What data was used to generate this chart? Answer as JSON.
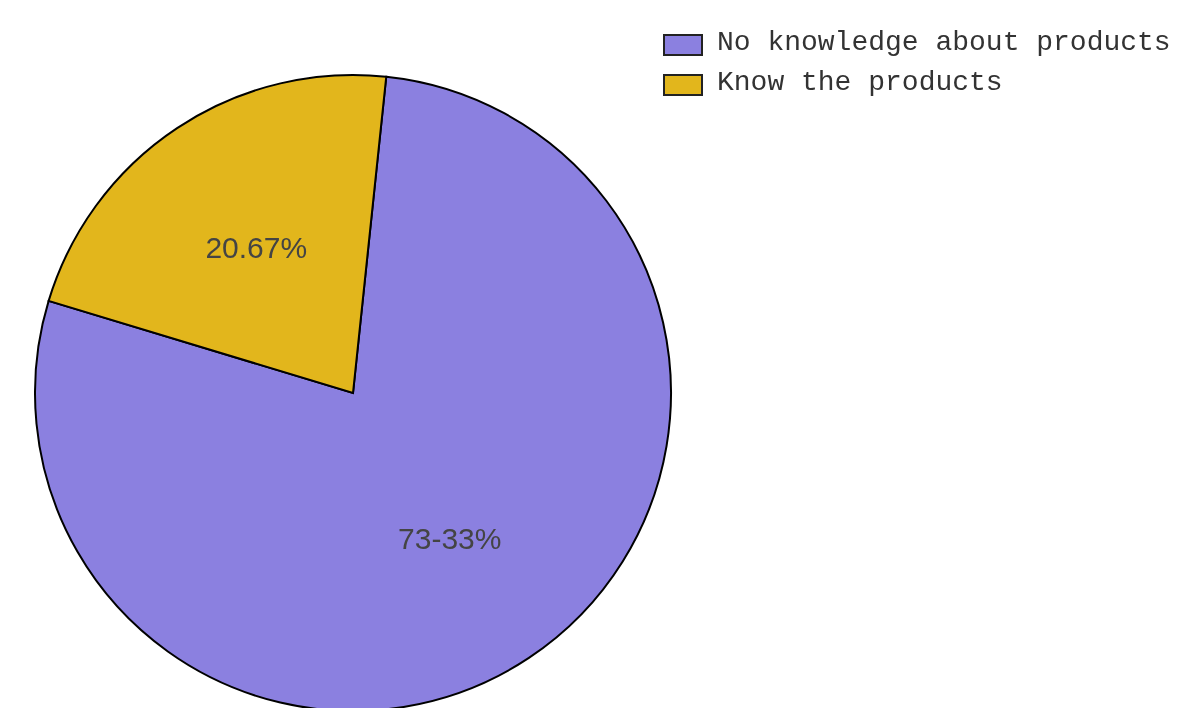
{
  "chart_data": {
    "type": "pie",
    "categories": [
      "No knowledge about products",
      "Know the products"
    ],
    "values": [
      73.33,
      20.67
    ],
    "colors": [
      "#8b80e0",
      "#e2b61c"
    ],
    "value_labels": [
      "73-33%",
      "20.67%"
    ],
    "legend": "top right"
  }
}
